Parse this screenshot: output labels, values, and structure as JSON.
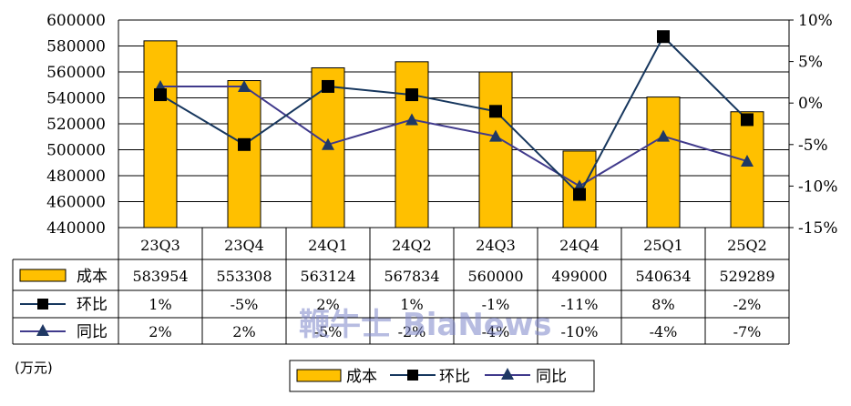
{
  "chart_data": {
    "type": "bar",
    "categories": [
      "23Q3",
      "23Q4",
      "24Q1",
      "24Q2",
      "24Q3",
      "24Q4",
      "25Q1",
      "25Q2"
    ],
    "series": [
      {
        "name": "成本",
        "type": "bar",
        "axis": "left",
        "values": [
          583954,
          553308,
          563124,
          567834,
          560000,
          499000,
          540634,
          529289
        ],
        "labels": [
          "583954",
          "553308",
          "563124",
          "567834",
          "560000",
          "499000",
          "540634",
          "529289"
        ]
      },
      {
        "name": "环比",
        "type": "line",
        "axis": "right",
        "marker": "square",
        "values": [
          1,
          -5,
          2,
          1,
          -1,
          -11,
          8,
          -2
        ],
        "labels": [
          "1%",
          "-5%",
          "2%",
          "1%",
          "-1%",
          "-11%",
          "8%",
          "-2%"
        ]
      },
      {
        "name": "同比",
        "type": "line",
        "axis": "right",
        "marker": "triangle",
        "values": [
          2,
          2,
          -5,
          -2,
          -4,
          -10,
          -4,
          -7
        ],
        "labels": [
          "2%",
          "2%",
          "-5%",
          "-2%",
          "-4%",
          "-10%",
          "-4%",
          "-7%"
        ]
      }
    ],
    "y_left": {
      "min": 440000,
      "max": 600000,
      "step": 20000,
      "ticks": [
        "440000",
        "460000",
        "480000",
        "500000",
        "520000",
        "540000",
        "560000",
        "580000",
        "600000"
      ]
    },
    "y_right": {
      "min": -15,
      "max": 10,
      "step": 5,
      "ticks": [
        "-15%",
        "-10%",
        "-5%",
        "0%",
        "5%",
        "10%"
      ]
    },
    "unit_label": "(万元)",
    "data_table": true,
    "legend_position": "bottom",
    "grid": true
  },
  "colors": {
    "bar_fill": "#FFC000",
    "bar_stroke": "#000000",
    "huanbi_line": "#17375E",
    "huanbi_marker": "#000000",
    "tongbi_line": "#403A8C",
    "tongbi_marker": "#1F3864"
  },
  "watermark": "鞭牛士 BiaNews"
}
